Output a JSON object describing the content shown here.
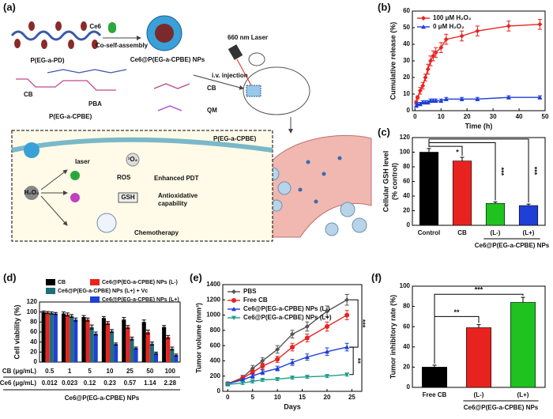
{
  "diagram": {
    "labels": [
      "(a)",
      "Ce6",
      "Co-self-assembly",
      "P(EG-a-PD)",
      "Ce6@P(EG-a-CPBE) NPs",
      "660 nm Laser",
      "i.v. injection",
      "CB",
      "PBA",
      "P(EG-a-CPBE)",
      "CB",
      "QM",
      "P(EG-a-CPBE)",
      "H₂O₂",
      "laser",
      "¹O₂",
      "ROS",
      "Enhanced PDT",
      "GSH",
      "Antioxidative",
      "capability",
      "Chemotherapy"
    ]
  },
  "chart_data": [
    {
      "type": "line",
      "panel": "(b)",
      "xlabel": "Time (h)",
      "ylabel": [
        "Cumulative release (%)"
      ],
      "x": [
        0.5,
        1,
        2,
        3,
        4,
        5,
        6,
        7,
        8,
        10,
        12,
        18,
        24,
        36,
        48
      ],
      "xlim": [
        -1,
        50
      ],
      "xticks": [
        0,
        10,
        20,
        30,
        40,
        50
      ],
      "ylim": [
        0,
        60
      ],
      "yticks": [
        0,
        10,
        20,
        30,
        40,
        50,
        60
      ],
      "legend": "upper left",
      "series": [
        {
          "name": "100 μM H₂O₂",
          "color": "#e8231f",
          "marker": "diamond",
          "values": [
            5,
            8,
            12,
            15,
            20,
            25,
            30,
            33,
            35,
            38,
            43,
            45,
            48,
            51,
            52
          ],
          "errors": [
            1,
            1,
            2,
            2,
            2,
            3,
            3,
            3,
            3,
            3,
            3,
            3,
            3,
            3,
            3
          ]
        },
        {
          "name": "0 μM H₂O₂",
          "color": "#1f3fd6",
          "marker": "triangle",
          "values": [
            3,
            4,
            4,
            5,
            5,
            5,
            6,
            6,
            6,
            6,
            7,
            7,
            7,
            8,
            8
          ],
          "errors": [
            1,
            1,
            1,
            1,
            1,
            1,
            1,
            1,
            1,
            1,
            1,
            1,
            1,
            1,
            1
          ]
        }
      ]
    },
    {
      "type": "bar",
      "panel": "(c)",
      "ylabel": [
        "Cellular GSH level",
        "(% control)"
      ],
      "categories": [
        "Control",
        "CB",
        "(L-)",
        "(L+)"
      ],
      "group_label": "Ce6@P(EG-a-CPBE) NPs",
      "values": [
        100,
        88,
        30,
        27
      ],
      "errors": [
        5,
        5,
        2,
        2
      ],
      "colors": [
        "#000000",
        "#e8231f",
        "#1fc21f",
        "#1f3fd6"
      ],
      "ylim": [
        0,
        120
      ],
      "yticks": [
        0,
        20,
        40,
        60,
        80,
        100,
        120
      ],
      "annotations": [
        "*",
        "***",
        "***"
      ]
    },
    {
      "type": "grouped_bar",
      "panel": "(d)",
      "ylabel": [
        "Cell viability (%)"
      ],
      "row_labels": [
        "CB (μg/mL)",
        "Ce6 (μg/mL)"
      ],
      "categories": [
        "0.5",
        "1",
        "5",
        "10",
        "25",
        "50",
        "100"
      ],
      "categories2": [
        "0.012",
        "0.023",
        "0.12",
        "0.23",
        "0.57",
        "1.14",
        "2.28"
      ],
      "group_label": "Ce6@P(EG-a-CPBE) NPs",
      "ylim": [
        0,
        120
      ],
      "yticks": [
        0,
        20,
        40,
        60,
        80,
        100,
        120
      ],
      "legend": "top",
      "series": [
        {
          "name": "CB",
          "color": "#000000",
          "values": [
            100,
            97,
            90,
            88,
            85,
            80,
            70
          ],
          "errors": [
            2,
            3,
            3,
            3,
            4,
            4,
            3
          ]
        },
        {
          "name": "Ce6@P(EG-a-CPBE) NPs (L-)",
          "color": "#e8231f",
          "values": [
            99,
            95,
            85,
            78,
            70,
            60,
            50
          ],
          "errors": [
            2,
            3,
            3,
            3,
            3,
            4,
            3
          ]
        },
        {
          "name": "Ce6@P(EG-a-CPBE) NPs (L+) + Vc",
          "color": "#1f6f78",
          "values": [
            98,
            92,
            70,
            62,
            47,
            37,
            27
          ],
          "errors": [
            2,
            3,
            4,
            3,
            3,
            3,
            3
          ]
        },
        {
          "name": "Ce6@P(EG-a-CPBE) NPs (L+)",
          "color": "#1f3fd6",
          "values": [
            97,
            85,
            57,
            36,
            28,
            18,
            14
          ],
          "errors": [
            2,
            3,
            3,
            2,
            2,
            2,
            2
          ]
        }
      ]
    },
    {
      "type": "line",
      "panel": "(e)",
      "xlabel": "Days",
      "ylabel": [
        "Tumor volume (mm³)"
      ],
      "x": [
        0,
        3,
        5,
        7,
        10,
        13,
        16,
        20,
        24
      ],
      "xlim": [
        -1,
        27
      ],
      "xticks": [
        0,
        5,
        10,
        15,
        20,
        25
      ],
      "ylim": [
        0,
        1400
      ],
      "yticks": [
        0,
        200,
        400,
        600,
        800,
        1000,
        1200,
        1400
      ],
      "legend": "upper left",
      "annotations": [
        "***",
        "**"
      ],
      "series": [
        {
          "name": "PBS",
          "color": "#555555",
          "marker": "diamond",
          "values": [
            100,
            180,
            300,
            400,
            550,
            750,
            850,
            1050,
            1200
          ],
          "errors": [
            20,
            30,
            40,
            40,
            50,
            50,
            60,
            70,
            70
          ]
        },
        {
          "name": "Free CB",
          "color": "#e8231f",
          "marker": "circle",
          "values": [
            100,
            170,
            250,
            330,
            420,
            580,
            700,
            850,
            1000
          ],
          "errors": [
            20,
            30,
            30,
            40,
            40,
            50,
            50,
            60,
            60
          ]
        },
        {
          "name": "Ce6@P(EG-a-CPBE) NPs (L-)",
          "color": "#1f3fd6",
          "marker": "triangle",
          "values": [
            100,
            150,
            200,
            250,
            300,
            380,
            450,
            520,
            580
          ],
          "errors": [
            20,
            20,
            30,
            30,
            30,
            40,
            40,
            50,
            50
          ]
        },
        {
          "name": "Ce6@P(EG-a-CPBE) NPs (L+)",
          "color": "#1f9c8c",
          "marker": "triangle-down",
          "values": [
            90,
            110,
            130,
            150,
            160,
            180,
            190,
            200,
            220
          ],
          "errors": [
            20,
            20,
            20,
            20,
            20,
            20,
            20,
            20,
            20
          ]
        }
      ]
    },
    {
      "type": "bar",
      "panel": "(f)",
      "ylabel": [
        "Tumor inhibitory rate (%)"
      ],
      "categories": [
        "Free CB",
        "(L-)",
        "(L+)"
      ],
      "group_label": "Ce6@P(EG-a-CPBE) NPs",
      "values": [
        20,
        59,
        84
      ],
      "errors": [
        2,
        3,
        5
      ],
      "colors": [
        "#000000",
        "#e8231f",
        "#1fc21f"
      ],
      "ylim": [
        0,
        100
      ],
      "yticks": [
        0,
        20,
        40,
        60,
        80,
        100
      ],
      "annotations": [
        "**",
        "***"
      ]
    }
  ]
}
